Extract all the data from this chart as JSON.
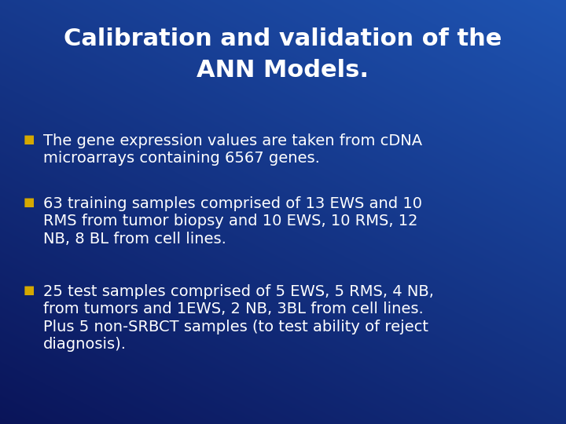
{
  "title_line1": "Calibration and validation of the",
  "title_line2": "ANN Models.",
  "bullet1_line1": "The gene expression values are taken from cDNA",
  "bullet1_line2": "microarrays containing 6567 genes.",
  "bullet2_line1": "63 training samples comprised of 13 EWS and 10",
  "bullet2_line2": "RMS from tumor biopsy and 10 EWS, 10 RMS, 12",
  "bullet2_line3": "NB, 8 BL from cell lines.",
  "bullet3_line1": "25 test samples comprised of 5 EWS, 5 RMS, 4 NB,",
  "bullet3_line2": "from tumors and 1EWS, 2 NB, 3BL from cell lines.",
  "bullet3_line3": "Plus 5 non-SRBCT samples (to test ability of reject",
  "bullet3_line4": "diagnosis).",
  "bg_color_top_left": "#0a1a6a",
  "bg_color_bottom_right": "#1a5abf",
  "bg_mid": "#1040a0",
  "title_color": "#ffffff",
  "bullet_text_color": "#ffffff",
  "bullet_marker_color": "#d4a800",
  "title_fontsize": 22,
  "bullet_fontsize": 14,
  "marker_fontsize": 11
}
